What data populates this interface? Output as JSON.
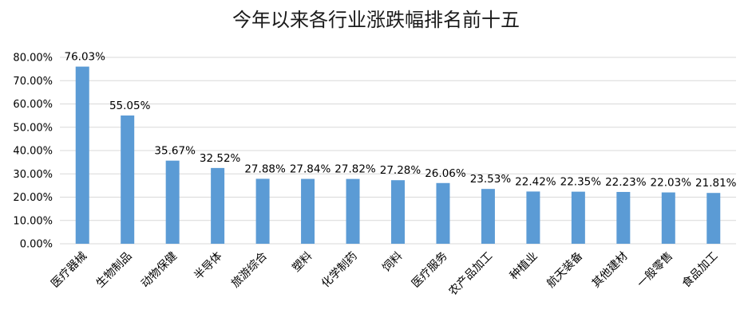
{
  "chart_data": {
    "type": "bar",
    "title": "今年以来各行业涨跌幅排名前十五",
    "xlabel": "",
    "ylabel": "",
    "categories": [
      "医疗器械",
      "生物制品",
      "动物保健",
      "半导体",
      "旅游综合",
      "塑料",
      "化学制药",
      "饲料",
      "医疗服务",
      "农产品加工",
      "种植业",
      "航天装备",
      "其他建材",
      "一般零售",
      "食品加工"
    ],
    "values": [
      76.03,
      55.05,
      35.67,
      32.52,
      27.88,
      27.84,
      27.82,
      27.28,
      26.06,
      23.53,
      22.42,
      22.35,
      22.23,
      22.03,
      21.81
    ],
    "data_labels": [
      "76.03%",
      "55.05%",
      "35.67%",
      "32.52%",
      "27.88%",
      "27.84%",
      "27.82%",
      "27.28%",
      "26.06%",
      "23.53%",
      "22.42%",
      "22.35%",
      "22.23%",
      "22.03%",
      "21.81%"
    ],
    "ylim": [
      0,
      80
    ],
    "yticks": [
      0,
      10,
      20,
      30,
      40,
      50,
      60,
      70,
      80
    ],
    "ytick_labels": [
      "0.00%",
      "10.00%",
      "20.00%",
      "30.00%",
      "40.00%",
      "50.00%",
      "60.00%",
      "70.00%",
      "80.00%"
    ],
    "grid": true,
    "legend": "none",
    "bar_color": "#5b9bd5"
  }
}
